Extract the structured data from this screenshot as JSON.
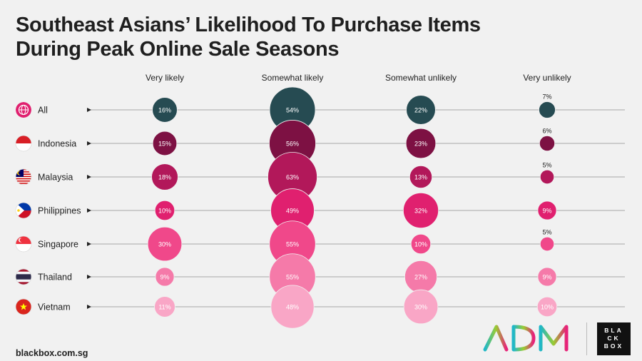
{
  "title_line1": "Southeast Asians’ Likelihood To Purchase Items",
  "title_line2": "During Peak Online Sale Seasons",
  "footer_source": "blackbox.com.sg",
  "logo": {
    "adm": "ADM",
    "blackbox_lines": [
      "BLA",
      "CK",
      "BOX"
    ]
  },
  "colors": {
    "All": "#264b52",
    "Indonesia": "#7d1143",
    "Malaysia": "#b2185a",
    "Philippines": "#e0206f",
    "Singapore": "#f0488a",
    "Thailand": "#f57aa9",
    "Vietnam": "#f9a6c6"
  },
  "chart_data": {
    "type": "bubble",
    "categories": [
      "Very likely",
      "Somewhat likely",
      "Somewhat unlikely",
      "Very unlikely"
    ],
    "series": [
      {
        "name": "All",
        "values": [
          16,
          54,
          22,
          7
        ]
      },
      {
        "name": "Indonesia",
        "values": [
          15,
          56,
          23,
          6
        ]
      },
      {
        "name": "Malaysia",
        "values": [
          18,
          63,
          13,
          5
        ]
      },
      {
        "name": "Philippines",
        "values": [
          10,
          49,
          32,
          9
        ]
      },
      {
        "name": "Singapore",
        "values": [
          30,
          55,
          10,
          5
        ]
      },
      {
        "name": "Thailand",
        "values": [
          9,
          55,
          27,
          9
        ]
      },
      {
        "name": "Vietnam",
        "values": [
          11,
          48,
          30,
          10
        ]
      }
    ],
    "unit": "%"
  }
}
